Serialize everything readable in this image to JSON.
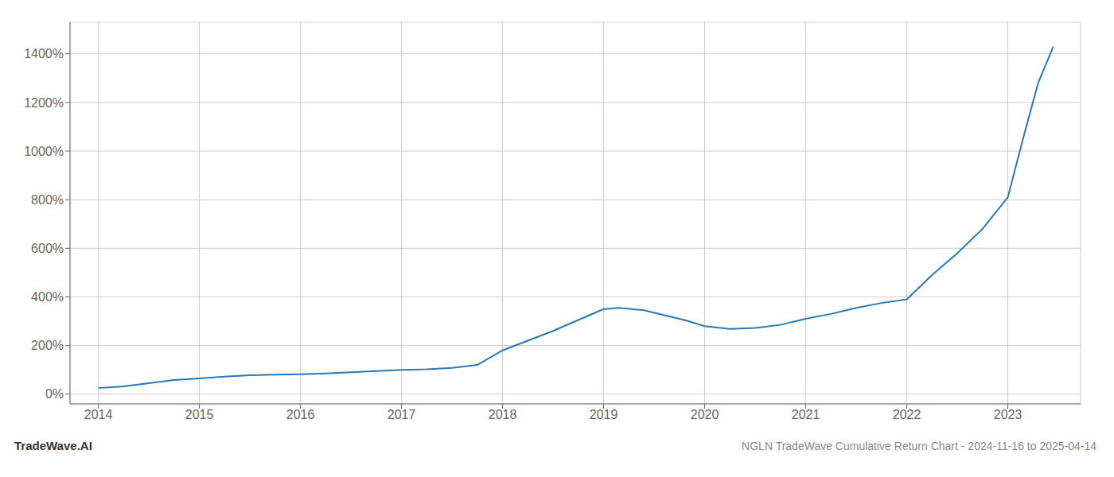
{
  "chart_data": {
    "type": "line",
    "title": "NGLN TradeWave Cumulative Return Chart - 2024-11-16 to 2025-04-14",
    "annotations": [
      "TradeWave.AI"
    ],
    "x": [
      2014.0,
      2014.25,
      2014.5,
      2014.75,
      2015.0,
      2015.25,
      2015.5,
      2015.75,
      2016.0,
      2016.25,
      2016.5,
      2016.75,
      2017.0,
      2017.25,
      2017.5,
      2017.75,
      2018.0,
      2018.25,
      2018.5,
      2018.75,
      2019.0,
      2019.15,
      2019.4,
      2019.6,
      2019.8,
      2020.0,
      2020.25,
      2020.5,
      2020.75,
      2021.0,
      2021.25,
      2021.5,
      2021.75,
      2022.0,
      2022.25,
      2022.5,
      2022.75,
      2023.0,
      2023.15,
      2023.3,
      2023.45
    ],
    "values": [
      25,
      32,
      45,
      58,
      65,
      72,
      78,
      80,
      82,
      85,
      90,
      95,
      100,
      102,
      108,
      120,
      180,
      220,
      260,
      305,
      350,
      355,
      345,
      325,
      305,
      280,
      268,
      272,
      285,
      310,
      330,
      355,
      375,
      390,
      490,
      580,
      680,
      810,
      1050,
      1280,
      1430
    ],
    "color": "#2878b5",
    "xlim": [
      2013.72,
      2023.72
    ],
    "ylim": [
      -40,
      1530
    ],
    "xticks": [
      2014,
      2015,
      2016,
      2017,
      2018,
      2019,
      2020,
      2021,
      2022,
      2023
    ],
    "yticks": [
      {
        "value": 0,
        "label": "0%"
      },
      {
        "value": 200,
        "label": "200%"
      },
      {
        "value": 400,
        "label": "400%"
      },
      {
        "value": 600,
        "label": "600%"
      },
      {
        "value": 800,
        "label": "800%"
      },
      {
        "value": 1000,
        "label": "1000%"
      },
      {
        "value": 1200,
        "label": "1200%"
      },
      {
        "value": 1400,
        "label": "1400%"
      }
    ],
    "grid": true
  }
}
